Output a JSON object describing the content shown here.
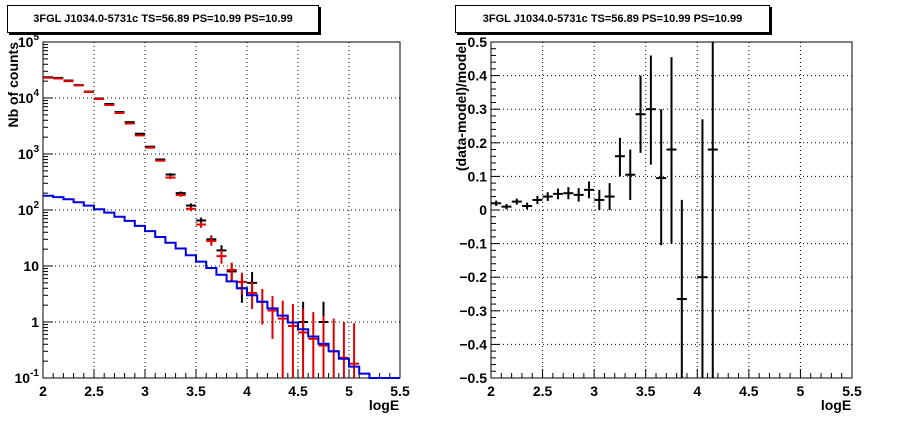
{
  "colors": {
    "data": "#000000",
    "model_total": "#e00000",
    "source_model": "#0000dd",
    "grid": "#000000",
    "frame": "#000000"
  },
  "chart_data": [
    {
      "type": "line",
      "title": "3FGL J1034.0-5731c TS=56.89 PS=10.99 PS=10.99",
      "xlabel": "logE",
      "ylabel": "Nb of counts",
      "yscale": "log",
      "xlim": [
        2,
        5.5
      ],
      "ylim": [
        0.1,
        100000
      ],
      "grid": true,
      "xticks": [
        "2",
        "2.5",
        "3",
        "3.5",
        "4",
        "4.5",
        "5",
        "5.5"
      ],
      "yticks": [
        "10^-1",
        "1",
        "10",
        "10^2",
        "10^3",
        "10^4",
        "10^5"
      ],
      "series": [
        {
          "style": "errorbar",
          "color": "black",
          "points": [
            {
              "x": 2.05,
              "y": 23500,
              "lo": 23200,
              "hi": 23800
            },
            {
              "x": 2.15,
              "y": 22800,
              "lo": 22500,
              "hi": 23100
            },
            {
              "x": 2.25,
              "y": 20500,
              "lo": 20200,
              "hi": 20800
            },
            {
              "x": 2.35,
              "y": 17000,
              "lo": 16700,
              "hi": 17300
            },
            {
              "x": 2.45,
              "y": 13000,
              "lo": 12800,
              "hi": 13200
            },
            {
              "x": 2.55,
              "y": 9800,
              "lo": 9600,
              "hi": 10000
            },
            {
              "x": 2.65,
              "y": 7800,
              "lo": 7600,
              "hi": 8000
            },
            {
              "x": 2.75,
              "y": 5600,
              "lo": 5450,
              "hi": 5750
            },
            {
              "x": 2.85,
              "y": 3700,
              "lo": 3600,
              "hi": 3800
            },
            {
              "x": 2.95,
              "y": 2300,
              "lo": 2220,
              "hi": 2380
            },
            {
              "x": 3.05,
              "y": 1350,
              "lo": 1300,
              "hi": 1400
            },
            {
              "x": 3.15,
              "y": 800,
              "lo": 770,
              "hi": 830
            },
            {
              "x": 3.25,
              "y": 430,
              "lo": 405,
              "hi": 455
            },
            {
              "x": 3.35,
              "y": 200,
              "lo": 186,
              "hi": 214
            },
            {
              "x": 3.45,
              "y": 120,
              "lo": 109,
              "hi": 131
            },
            {
              "x": 3.55,
              "y": 65,
              "lo": 57,
              "hi": 73
            },
            {
              "x": 3.65,
              "y": 30,
              "lo": 25,
              "hi": 35
            },
            {
              "x": 3.75,
              "y": 19,
              "lo": 15,
              "hi": 23.5
            },
            {
              "x": 3.85,
              "y": 8,
              "lo": 5.5,
              "hi": 11
            },
            {
              "x": 3.95,
              "y": 4,
              "lo": 2.2,
              "hi": 6.5
            },
            {
              "x": 4.05,
              "y": 5,
              "lo": 3,
              "hi": 7.8
            },
            {
              "x": 4.55,
              "y": 1,
              "lo": 0.3,
              "hi": 2.3
            },
            {
              "x": 4.75,
              "y": 1,
              "lo": 0.3,
              "hi": 2.3
            }
          ]
        },
        {
          "style": "errorbar",
          "color": "red",
          "points": [
            {
              "x": 2.05,
              "y": 23000,
              "lo": 22700,
              "hi": 23300
            },
            {
              "x": 2.15,
              "y": 22300,
              "lo": 22000,
              "hi": 22600
            },
            {
              "x": 2.25,
              "y": 20000,
              "lo": 19700,
              "hi": 20300
            },
            {
              "x": 2.35,
              "y": 16800,
              "lo": 16500,
              "hi": 17100
            },
            {
              "x": 2.45,
              "y": 12800,
              "lo": 12600,
              "hi": 13000
            },
            {
              "x": 2.55,
              "y": 9600,
              "lo": 9400,
              "hi": 9800
            },
            {
              "x": 2.65,
              "y": 7500,
              "lo": 7300,
              "hi": 7700
            },
            {
              "x": 2.75,
              "y": 5400,
              "lo": 5250,
              "hi": 5550
            },
            {
              "x": 2.85,
              "y": 3500,
              "lo": 3400,
              "hi": 3600
            },
            {
              "x": 2.95,
              "y": 2150,
              "lo": 2070,
              "hi": 2230
            },
            {
              "x": 3.05,
              "y": 1300,
              "lo": 1250,
              "hi": 1350
            },
            {
              "x": 3.15,
              "y": 760,
              "lo": 730,
              "hi": 790
            },
            {
              "x": 3.25,
              "y": 380,
              "lo": 355,
              "hi": 405
            },
            {
              "x": 3.35,
              "y": 185,
              "lo": 172,
              "hi": 199
            },
            {
              "x": 3.45,
              "y": 105,
              "lo": 95,
              "hi": 115
            },
            {
              "x": 3.55,
              "y": 55,
              "lo": 48,
              "hi": 62
            },
            {
              "x": 3.65,
              "y": 28,
              "lo": 23,
              "hi": 33
            },
            {
              "x": 3.75,
              "y": 15,
              "lo": 11,
              "hi": 19.5
            },
            {
              "x": 3.85,
              "y": 8.5,
              "lo": 5.6,
              "hi": 11.5
            },
            {
              "x": 3.95,
              "y": 5.2,
              "lo": 3.1,
              "hi": 7.6
            },
            {
              "x": 4.05,
              "y": 3.3,
              "lo": 1.7,
              "hi": 5.2
            },
            {
              "x": 4.15,
              "y": 2.3,
              "lo": 0.9,
              "hi": 3.9
            },
            {
              "x": 4.25,
              "y": 1.6,
              "lo": 0.5,
              "hi": 2.9
            },
            {
              "x": 4.35,
              "y": 1.15,
              "lo": 0.1,
              "hi": 2.4
            },
            {
              "x": 4.45,
              "y": 0.85,
              "lo": 0.1,
              "hi": 2.1
            },
            {
              "x": 4.55,
              "y": 0.65,
              "lo": 0.1,
              "hi": 1.75
            },
            {
              "x": 4.65,
              "y": 0.5,
              "lo": 0.1,
              "hi": 1.5
            },
            {
              "x": 4.75,
              "y": 0.38,
              "lo": 0.1,
              "hi": 1.3
            },
            {
              "x": 4.85,
              "y": 0.3,
              "lo": 0.1,
              "hi": 1.15
            },
            {
              "x": 4.95,
              "y": 0.23,
              "lo": 0.1,
              "hi": 1.0
            },
            {
              "x": 5.05,
              "y": 0.18,
              "lo": 0.1,
              "hi": 0.95
            }
          ]
        },
        {
          "style": "step",
          "color": "blue",
          "bin_edges": [
            2.0,
            2.1,
            2.2,
            2.3,
            2.4,
            2.5,
            2.6,
            2.7,
            2.8,
            2.9,
            3.0,
            3.1,
            3.2,
            3.3,
            3.4,
            3.5,
            3.6,
            3.7,
            3.8,
            3.9,
            4.0,
            4.1,
            4.2,
            4.3,
            4.4,
            4.5,
            4.6,
            4.7,
            4.8,
            4.9,
            5.0,
            5.1,
            5.2,
            5.3,
            5.4,
            5.5
          ],
          "values": [
            180,
            170,
            155,
            138,
            120,
            103,
            90,
            76,
            64,
            52,
            42,
            33,
            26,
            20.5,
            15.5,
            12,
            9.2,
            7,
            5.3,
            4,
            3,
            2.3,
            1.75,
            1.3,
            0.98,
            0.74,
            0.55,
            0.41,
            0.3,
            0.22,
            0.16,
            0.12,
            0.1,
            0.1,
            0.1
          ]
        }
      ]
    },
    {
      "type": "scatter",
      "title": "3FGL J1034.0-5731c TS=56.89 PS=10.99 PS=10.99",
      "xlabel": "logE",
      "ylabel": "(data-model)/model",
      "xlim": [
        2,
        5.5
      ],
      "ylim": [
        -0.5,
        0.5
      ],
      "grid": true,
      "xticks": [
        "2",
        "2.5",
        "3",
        "3.5",
        "4",
        "4.5",
        "5",
        "5.5"
      ],
      "yticks": [
        "−0.5",
        "−0.4",
        "−0.3",
        "−0.2",
        "−0.1",
        "0",
        "0.1",
        "0.2",
        "0.3",
        "0.4",
        "0.5"
      ],
      "series": [
        {
          "style": "errorbar",
          "color": "black",
          "points": [
            {
              "x": 2.05,
              "y": 0.02,
              "lo": 0.012,
              "hi": 0.028
            },
            {
              "x": 2.15,
              "y": 0.01,
              "lo": 0.002,
              "hi": 0.018
            },
            {
              "x": 2.25,
              "y": 0.025,
              "lo": 0.016,
              "hi": 0.034
            },
            {
              "x": 2.35,
              "y": 0.012,
              "lo": 0.002,
              "hi": 0.022
            },
            {
              "x": 2.45,
              "y": 0.03,
              "lo": 0.018,
              "hi": 0.042
            },
            {
              "x": 2.55,
              "y": 0.04,
              "lo": 0.027,
              "hi": 0.053
            },
            {
              "x": 2.65,
              "y": 0.048,
              "lo": 0.032,
              "hi": 0.064
            },
            {
              "x": 2.75,
              "y": 0.05,
              "lo": 0.032,
              "hi": 0.068
            },
            {
              "x": 2.85,
              "y": 0.045,
              "lo": 0.025,
              "hi": 0.065
            },
            {
              "x": 2.95,
              "y": 0.06,
              "lo": 0.035,
              "hi": 0.085
            },
            {
              "x": 3.05,
              "y": 0.03,
              "lo": 0.0,
              "hi": 0.06
            },
            {
              "x": 3.15,
              "y": 0.04,
              "lo": 0.0,
              "hi": 0.08
            },
            {
              "x": 3.25,
              "y": 0.16,
              "lo": 0.1,
              "hi": 0.215
            },
            {
              "x": 3.35,
              "y": 0.105,
              "lo": 0.03,
              "hi": 0.18
            },
            {
              "x": 3.45,
              "y": 0.285,
              "lo": 0.17,
              "hi": 0.4
            },
            {
              "x": 3.55,
              "y": 0.3,
              "lo": 0.135,
              "hi": 0.46
            },
            {
              "x": 3.65,
              "y": 0.095,
              "lo": -0.105,
              "hi": 0.3
            },
            {
              "x": 3.75,
              "y": 0.18,
              "lo": -0.1,
              "hi": 0.455
            },
            {
              "x": 3.85,
              "y": -0.265,
              "lo": -0.5,
              "hi": 0.03
            },
            {
              "x": 4.05,
              "y": -0.2,
              "lo": -0.5,
              "hi": 0.27
            },
            {
              "x": 4.15,
              "y": 0.18,
              "lo": -0.5,
              "hi": 0.5
            }
          ]
        }
      ]
    }
  ]
}
